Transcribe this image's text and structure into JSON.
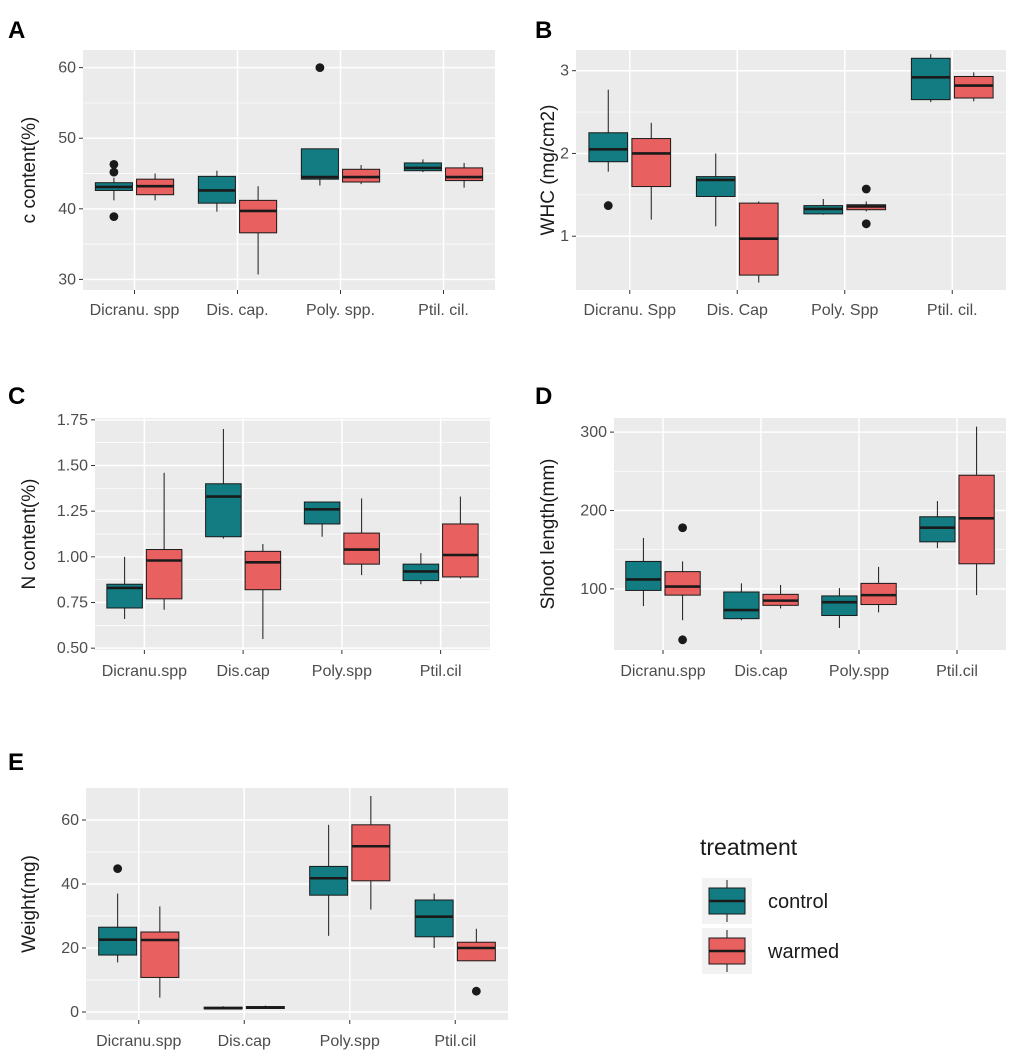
{
  "chart_data": [
    {
      "panel": "A",
      "type": "box",
      "xlabel": "",
      "ylabel": "c content(%)",
      "ylim": [
        28.5,
        62.5
      ],
      "yticks": [
        30,
        40,
        50,
        60
      ],
      "categories": [
        "Dicranu. spp",
        "Dis. cap.",
        "Poly. spp.",
        "Ptil. cil."
      ],
      "series": [
        {
          "name": "control",
          "boxes": [
            {
              "min": 41.2,
              "q1": 42.6,
              "median": 43.1,
              "q3": 43.7,
              "max": 44.4,
              "outliers": [
                46.3,
                45.2,
                38.9
              ]
            },
            {
              "min": 39.6,
              "q1": 40.8,
              "median": 42.6,
              "q3": 44.6,
              "max": 45.4,
              "outliers": []
            },
            {
              "min": 43.3,
              "q1": 44.2,
              "median": 44.5,
              "q3": 48.5,
              "max": 48.5,
              "outliers": [
                60.0
              ]
            },
            {
              "min": 45.2,
              "q1": 45.4,
              "median": 45.8,
              "q3": 46.5,
              "max": 47.0,
              "outliers": []
            }
          ]
        },
        {
          "name": "warmed",
          "boxes": [
            {
              "min": 41.2,
              "q1": 42.0,
              "median": 43.2,
              "q3": 44.2,
              "max": 45.0,
              "outliers": []
            },
            {
              "min": 30.7,
              "q1": 36.6,
              "median": 39.7,
              "q3": 41.2,
              "max": 43.2,
              "outliers": []
            },
            {
              "min": 43.5,
              "q1": 43.8,
              "median": 44.5,
              "q3": 45.6,
              "max": 46.2,
              "outliers": []
            },
            {
              "min": 43.0,
              "q1": 44.0,
              "median": 44.5,
              "q3": 45.8,
              "max": 46.5,
              "outliers": []
            }
          ]
        }
      ]
    },
    {
      "panel": "B",
      "type": "box",
      "xlabel": "",
      "ylabel": "WHC (mg/cm2)",
      "ylim": [
        0.35,
        3.25
      ],
      "yticks": [
        1,
        2,
        3
      ],
      "categories": [
        "Dicranu. Spp",
        "Dis. Cap",
        "Poly. Spp",
        "Ptil. cil."
      ],
      "series": [
        {
          "name": "control",
          "boxes": [
            {
              "min": 1.78,
              "q1": 1.9,
              "median": 2.05,
              "q3": 2.25,
              "max": 2.77,
              "outliers": [
                1.37
              ]
            },
            {
              "min": 1.12,
              "q1": 1.48,
              "median": 1.68,
              "q3": 1.72,
              "max": 2.0,
              "outliers": []
            },
            {
              "min": 1.26,
              "q1": 1.27,
              "median": 1.33,
              "q3": 1.37,
              "max": 1.45,
              "outliers": []
            },
            {
              "min": 2.62,
              "q1": 2.65,
              "median": 2.92,
              "q3": 3.15,
              "max": 3.2,
              "outliers": []
            }
          ]
        },
        {
          "name": "warmed",
          "boxes": [
            {
              "min": 1.2,
              "q1": 1.6,
              "median": 2.0,
              "q3": 2.18,
              "max": 2.37,
              "outliers": []
            },
            {
              "min": 0.44,
              "q1": 0.53,
              "median": 0.97,
              "q3": 1.4,
              "max": 1.42,
              "outliers": []
            },
            {
              "min": 1.3,
              "q1": 1.32,
              "median": 1.36,
              "q3": 1.38,
              "max": 1.42,
              "outliers": [
                1.57,
                1.15
              ]
            },
            {
              "min": 2.63,
              "q1": 2.67,
              "median": 2.82,
              "q3": 2.93,
              "max": 2.98,
              "outliers": []
            }
          ]
        }
      ]
    },
    {
      "panel": "C",
      "type": "box",
      "xlabel": "",
      "ylabel": "N content(%)",
      "ylim": [
        0.49,
        1.76
      ],
      "yticks": [
        "0.50",
        "0.75",
        "1.00",
        "1.25",
        "1.50",
        "1.75"
      ],
      "categories": [
        "Dicranu.spp",
        "Dis.cap",
        "Poly.spp",
        "Ptil.cil"
      ],
      "series": [
        {
          "name": "control",
          "boxes": [
            {
              "min": 0.66,
              "q1": 0.72,
              "median": 0.83,
              "q3": 0.85,
              "max": 1.0,
              "outliers": []
            },
            {
              "min": 1.1,
              "q1": 1.11,
              "median": 1.33,
              "q3": 1.4,
              "max": 1.7,
              "outliers": []
            },
            {
              "min": 1.11,
              "q1": 1.18,
              "median": 1.26,
              "q3": 1.3,
              "max": 1.3,
              "outliers": []
            },
            {
              "min": 0.85,
              "q1": 0.87,
              "median": 0.92,
              "q3": 0.96,
              "max": 1.02,
              "outliers": []
            }
          ]
        },
        {
          "name": "warmed",
          "boxes": [
            {
              "min": 0.71,
              "q1": 0.77,
              "median": 0.98,
              "q3": 1.04,
              "max": 1.46,
              "outliers": []
            },
            {
              "min": 0.55,
              "q1": 0.82,
              "median": 0.97,
              "q3": 1.03,
              "max": 1.07,
              "outliers": []
            },
            {
              "min": 0.9,
              "q1": 0.96,
              "median": 1.04,
              "q3": 1.13,
              "max": 1.32,
              "outliers": []
            },
            {
              "min": 0.88,
              "q1": 0.89,
              "median": 1.01,
              "q3": 1.18,
              "max": 1.33,
              "outliers": []
            }
          ]
        }
      ]
    },
    {
      "panel": "D",
      "type": "box",
      "xlabel": "",
      "ylabel": "Shoot length(mm)",
      "ylim": [
        22,
        318
      ],
      "yticks": [
        100,
        200,
        300
      ],
      "categories": [
        "Dicranu.spp",
        "Dis.cap",
        "Poly.spp",
        "Ptil.cil"
      ],
      "series": [
        {
          "name": "control",
          "boxes": [
            {
              "min": 78,
              "q1": 98,
              "median": 112,
              "q3": 135,
              "max": 165,
              "outliers": []
            },
            {
              "min": 60,
              "q1": 62,
              "median": 73,
              "q3": 96,
              "max": 107,
              "outliers": []
            },
            {
              "min": 50,
              "q1": 66,
              "median": 83,
              "q3": 91,
              "max": 101,
              "outliers": []
            },
            {
              "min": 152,
              "q1": 160,
              "median": 178,
              "q3": 192,
              "max": 212,
              "outliers": []
            }
          ]
        },
        {
          "name": "warmed",
          "boxes": [
            {
              "min": 60,
              "q1": 92,
              "median": 103,
              "q3": 122,
              "max": 135,
              "outliers": [
                178,
                35
              ]
            },
            {
              "min": 75,
              "q1": 79,
              "median": 85,
              "q3": 93,
              "max": 105,
              "outliers": []
            },
            {
              "min": 70,
              "q1": 80,
              "median": 92,
              "q3": 107,
              "max": 128,
              "outliers": []
            },
            {
              "min": 92,
              "q1": 132,
              "median": 190,
              "q3": 245,
              "max": 307,
              "outliers": []
            }
          ]
        }
      ]
    },
    {
      "panel": "E",
      "type": "box",
      "xlabel": "",
      "ylabel": "Weight(mg)",
      "ylim": [
        -2.5,
        70
      ],
      "yticks": [
        0,
        20,
        40,
        60
      ],
      "categories": [
        "Dicranu.spp",
        "Dis.cap",
        "Poly.spp",
        "Ptil.cil"
      ],
      "series": [
        {
          "name": "control",
          "boxes": [
            {
              "min": 15.5,
              "q1": 17.8,
              "median": 22.6,
              "q3": 26.5,
              "max": 37.0,
              "outliers": [
                44.8
              ]
            },
            {
              "min": 0.8,
              "q1": 1.0,
              "median": 1.2,
              "q3": 1.5,
              "max": 1.8,
              "outliers": []
            },
            {
              "min": 23.8,
              "q1": 36.5,
              "median": 41.8,
              "q3": 45.5,
              "max": 58.5,
              "outliers": []
            },
            {
              "min": 20.0,
              "q1": 23.5,
              "median": 29.8,
              "q3": 35.0,
              "max": 37.0,
              "outliers": []
            }
          ]
        },
        {
          "name": "warmed",
          "boxes": [
            {
              "min": 4.5,
              "q1": 10.8,
              "median": 22.5,
              "q3": 25.0,
              "max": 33.0,
              "outliers": []
            },
            {
              "min": 1.0,
              "q1": 1.1,
              "median": 1.4,
              "q3": 1.7,
              "max": 2.0,
              "outliers": []
            },
            {
              "min": 32.0,
              "q1": 41.0,
              "median": 51.8,
              "q3": 58.5,
              "max": 67.5,
              "outliers": []
            },
            {
              "min": 16.0,
              "q1": 16.0,
              "median": 20.0,
              "q3": 21.8,
              "max": 26.0,
              "outliers": [
                6.5
              ]
            }
          ]
        }
      ]
    }
  ],
  "legend": {
    "title": "treatment",
    "items": [
      {
        "label": "control",
        "color": "#127c82"
      },
      {
        "label": "warmed",
        "color": "#e8605f"
      }
    ]
  },
  "colors": {
    "control": "#127c82",
    "warmed": "#e8605f",
    "panel_bg": "#ebebeb",
    "grid": "#ffffff",
    "line": "#1a1a1a"
  }
}
